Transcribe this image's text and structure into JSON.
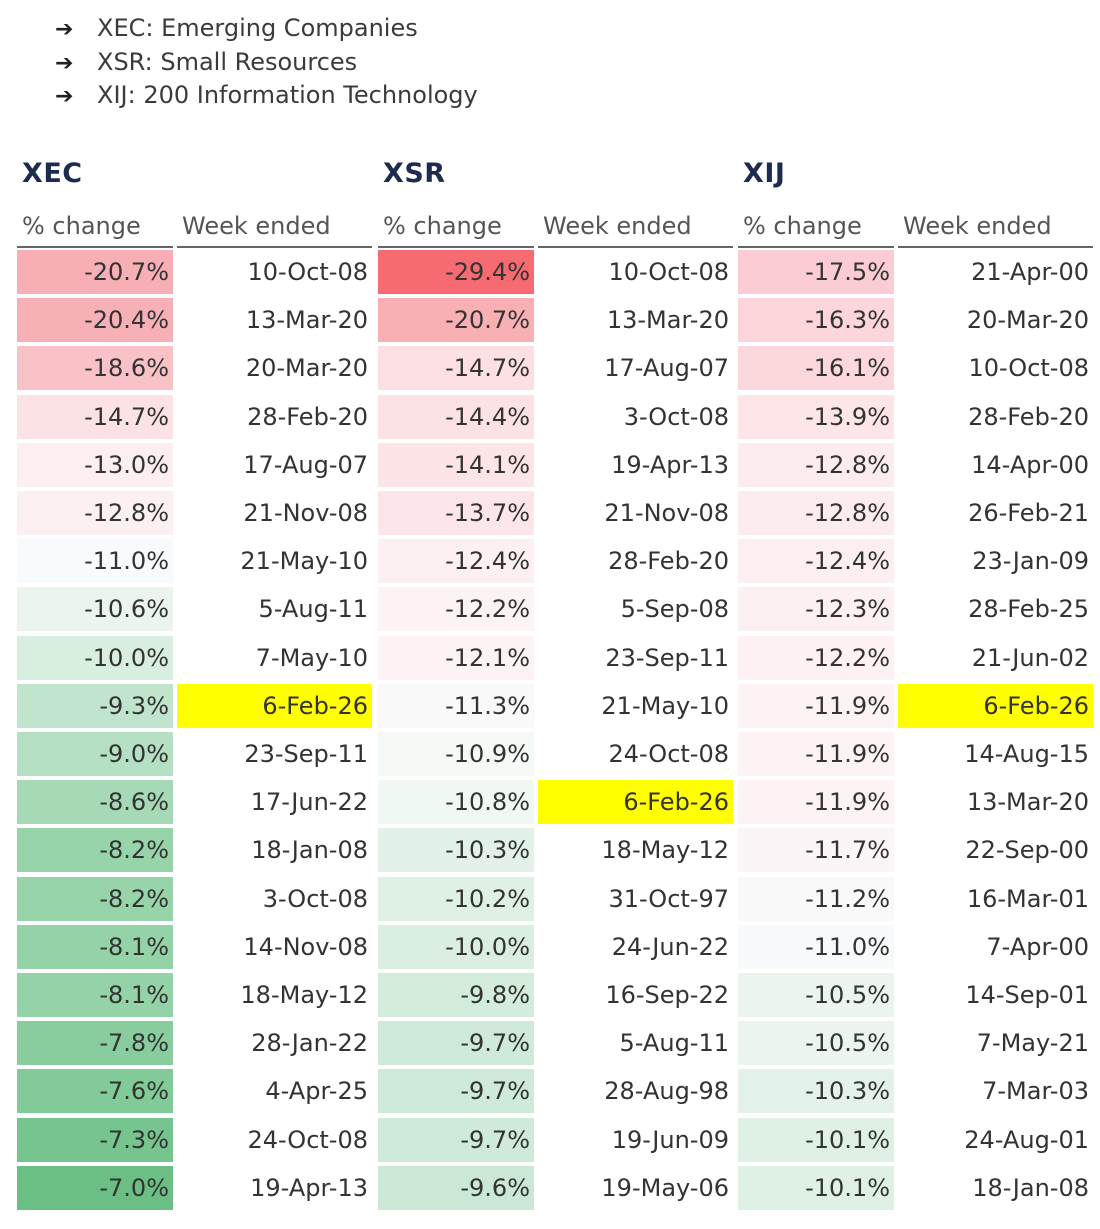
{
  "bullets": [
    {
      "arrow": "➔",
      "text": "XEC: Emerging Companies"
    },
    {
      "arrow": "➔",
      "text": "XSR: Small Resources"
    },
    {
      "arrow": "➔",
      "text": "XIJ: 200 Information Technology"
    }
  ],
  "headers": {
    "pct": "% change",
    "week": "Week ended"
  },
  "highlight_color": "#ffff00",
  "tables": [
    {
      "title": "XEC",
      "rows": [
        {
          "pct": "-20.7%",
          "week": "10-Oct-08",
          "color": "#f7aeb4",
          "hl": false
        },
        {
          "pct": "-20.4%",
          "week": "13-Mar-20",
          "color": "#f7b1b6",
          "hl": false
        },
        {
          "pct": "-18.6%",
          "week": "20-Mar-20",
          "color": "#f9c2c7",
          "hl": false
        },
        {
          "pct": "-14.7%",
          "week": "28-Feb-20",
          "color": "#fce2e5",
          "hl": false
        },
        {
          "pct": "-13.0%",
          "week": "17-Aug-07",
          "color": "#fdeef0",
          "hl": false
        },
        {
          "pct": "-12.8%",
          "week": "21-Nov-08",
          "color": "#fdf0f2",
          "hl": false
        },
        {
          "pct": "-11.0%",
          "week": "21-May-10",
          "color": "#f8fbfb",
          "hl": false
        },
        {
          "pct": "-10.6%",
          "week": "5-Aug-11",
          "color": "#eaf5ee",
          "hl": false
        },
        {
          "pct": "-10.0%",
          "week": "7-May-10",
          "color": "#d8efe0",
          "hl": false
        },
        {
          "pct": "-9.3%",
          "week": "6-Feb-26",
          "color": "#c0e5cc",
          "hl": true
        },
        {
          "pct": "-9.0%",
          "week": "23-Sep-11",
          "color": "#b5e0c3",
          "hl": false
        },
        {
          "pct": "-8.6%",
          "week": "17-Jun-22",
          "color": "#a6dab6",
          "hl": false
        },
        {
          "pct": "-8.2%",
          "week": "18-Jan-08",
          "color": "#98d4aa",
          "hl": false
        },
        {
          "pct": "-8.2%",
          "week": "3-Oct-08",
          "color": "#98d4aa",
          "hl": false
        },
        {
          "pct": "-8.1%",
          "week": "14-Nov-08",
          "color": "#94d2a7",
          "hl": false
        },
        {
          "pct": "-8.1%",
          "week": "18-May-12",
          "color": "#94d2a7",
          "hl": false
        },
        {
          "pct": "-7.8%",
          "week": "28-Jan-22",
          "color": "#89cd9e",
          "hl": false
        },
        {
          "pct": "-7.6%",
          "week": "4-Apr-25",
          "color": "#82ca98",
          "hl": false
        },
        {
          "pct": "-7.3%",
          "week": "24-Oct-08",
          "color": "#76c48e",
          "hl": false
        },
        {
          "pct": "-7.0%",
          "week": "19-Apr-13",
          "color": "#6bbf85",
          "hl": false
        }
      ]
    },
    {
      "title": "XSR",
      "rows": [
        {
          "pct": "-29.4%",
          "week": "10-Oct-08",
          "color": "#f66b72",
          "hl": false
        },
        {
          "pct": "-20.7%",
          "week": "13-Mar-20",
          "color": "#f9b0b5",
          "hl": false
        },
        {
          "pct": "-14.7%",
          "week": "17-Aug-07",
          "color": "#fde0e3",
          "hl": false
        },
        {
          "pct": "-14.4%",
          "week": "3-Oct-08",
          "color": "#fde2e5",
          "hl": false
        },
        {
          "pct": "-14.1%",
          "week": "19-Apr-13",
          "color": "#fde4e7",
          "hl": false
        },
        {
          "pct": "-13.7%",
          "week": "21-Nov-08",
          "color": "#fde6e9",
          "hl": false
        },
        {
          "pct": "-12.4%",
          "week": "28-Feb-20",
          "color": "#fdf0f2",
          "hl": false
        },
        {
          "pct": "-12.2%",
          "week": "5-Sep-08",
          "color": "#fdf2f4",
          "hl": false
        },
        {
          "pct": "-12.1%",
          "week": "23-Sep-11",
          "color": "#fdf3f5",
          "hl": false
        },
        {
          "pct": "-11.3%",
          "week": "21-May-10",
          "color": "#faf9fa",
          "hl": false
        },
        {
          "pct": "-10.9%",
          "week": "24-Oct-08",
          "color": "#f5faf7",
          "hl": false
        },
        {
          "pct": "-10.8%",
          "week": "6-Feb-26",
          "color": "#f0f8f3",
          "hl": true
        },
        {
          "pct": "-10.3%",
          "week": "18-May-12",
          "color": "#e2f2e8",
          "hl": false
        },
        {
          "pct": "-10.2%",
          "week": "31-Oct-97",
          "color": "#dff1e5",
          "hl": false
        },
        {
          "pct": "-10.0%",
          "week": "24-Jun-22",
          "color": "#daefe2",
          "hl": false
        },
        {
          "pct": "-9.8%",
          "week": "16-Sep-22",
          "color": "#d3ecdc",
          "hl": false
        },
        {
          "pct": "-9.7%",
          "week": "5-Aug-11",
          "color": "#cfeadb",
          "hl": false
        },
        {
          "pct": "-9.7%",
          "week": "28-Aug-98",
          "color": "#cfeadb",
          "hl": false
        },
        {
          "pct": "-9.7%",
          "week": "19-Jun-09",
          "color": "#cfeadb",
          "hl": false
        },
        {
          "pct": "-9.6%",
          "week": "19-May-06",
          "color": "#cbe8d7",
          "hl": false
        }
      ]
    },
    {
      "title": "XIJ",
      "rows": [
        {
          "pct": "-17.5%",
          "week": "21-Apr-00",
          "color": "#fbcdd2",
          "hl": false
        },
        {
          "pct": "-16.3%",
          "week": "20-Mar-20",
          "color": "#fcd6da",
          "hl": false
        },
        {
          "pct": "-16.1%",
          "week": "10-Oct-08",
          "color": "#fcd8dc",
          "hl": false
        },
        {
          "pct": "-13.9%",
          "week": "28-Feb-20",
          "color": "#fde5e8",
          "hl": false
        },
        {
          "pct": "-12.8%",
          "week": "14-Apr-00",
          "color": "#fdecee",
          "hl": false
        },
        {
          "pct": "-12.8%",
          "week": "26-Feb-21",
          "color": "#fdecee",
          "hl": false
        },
        {
          "pct": "-12.4%",
          "week": "23-Jan-09",
          "color": "#fdeff1",
          "hl": false
        },
        {
          "pct": "-12.3%",
          "week": "28-Feb-25",
          "color": "#fdf0f2",
          "hl": false
        },
        {
          "pct": "-12.2%",
          "week": "21-Jun-02",
          "color": "#fdf1f3",
          "hl": false
        },
        {
          "pct": "-11.9%",
          "week": "6-Feb-26",
          "color": "#fdf3f5",
          "hl": true
        },
        {
          "pct": "-11.9%",
          "week": "14-Aug-15",
          "color": "#fdf3f5",
          "hl": false
        },
        {
          "pct": "-11.9%",
          "week": "13-Mar-20",
          "color": "#fdf3f5",
          "hl": false
        },
        {
          "pct": "-11.7%",
          "week": "22-Sep-00",
          "color": "#fcf5f7",
          "hl": false
        },
        {
          "pct": "-11.2%",
          "week": "16-Mar-01",
          "color": "#f9f9fa",
          "hl": false
        },
        {
          "pct": "-11.0%",
          "week": "7-Apr-00",
          "color": "#f7fafa",
          "hl": false
        },
        {
          "pct": "-10.5%",
          "week": "14-Sep-01",
          "color": "#eaf5ee",
          "hl": false
        },
        {
          "pct": "-10.5%",
          "week": "7-May-21",
          "color": "#eaf5ee",
          "hl": false
        },
        {
          "pct": "-10.3%",
          "week": "7-Mar-03",
          "color": "#e4f3e9",
          "hl": false
        },
        {
          "pct": "-10.1%",
          "week": "24-Aug-01",
          "color": "#dff1e5",
          "hl": false
        },
        {
          "pct": "-10.1%",
          "week": "18-Jan-08",
          "color": "#dff1e5",
          "hl": false
        }
      ]
    }
  ]
}
